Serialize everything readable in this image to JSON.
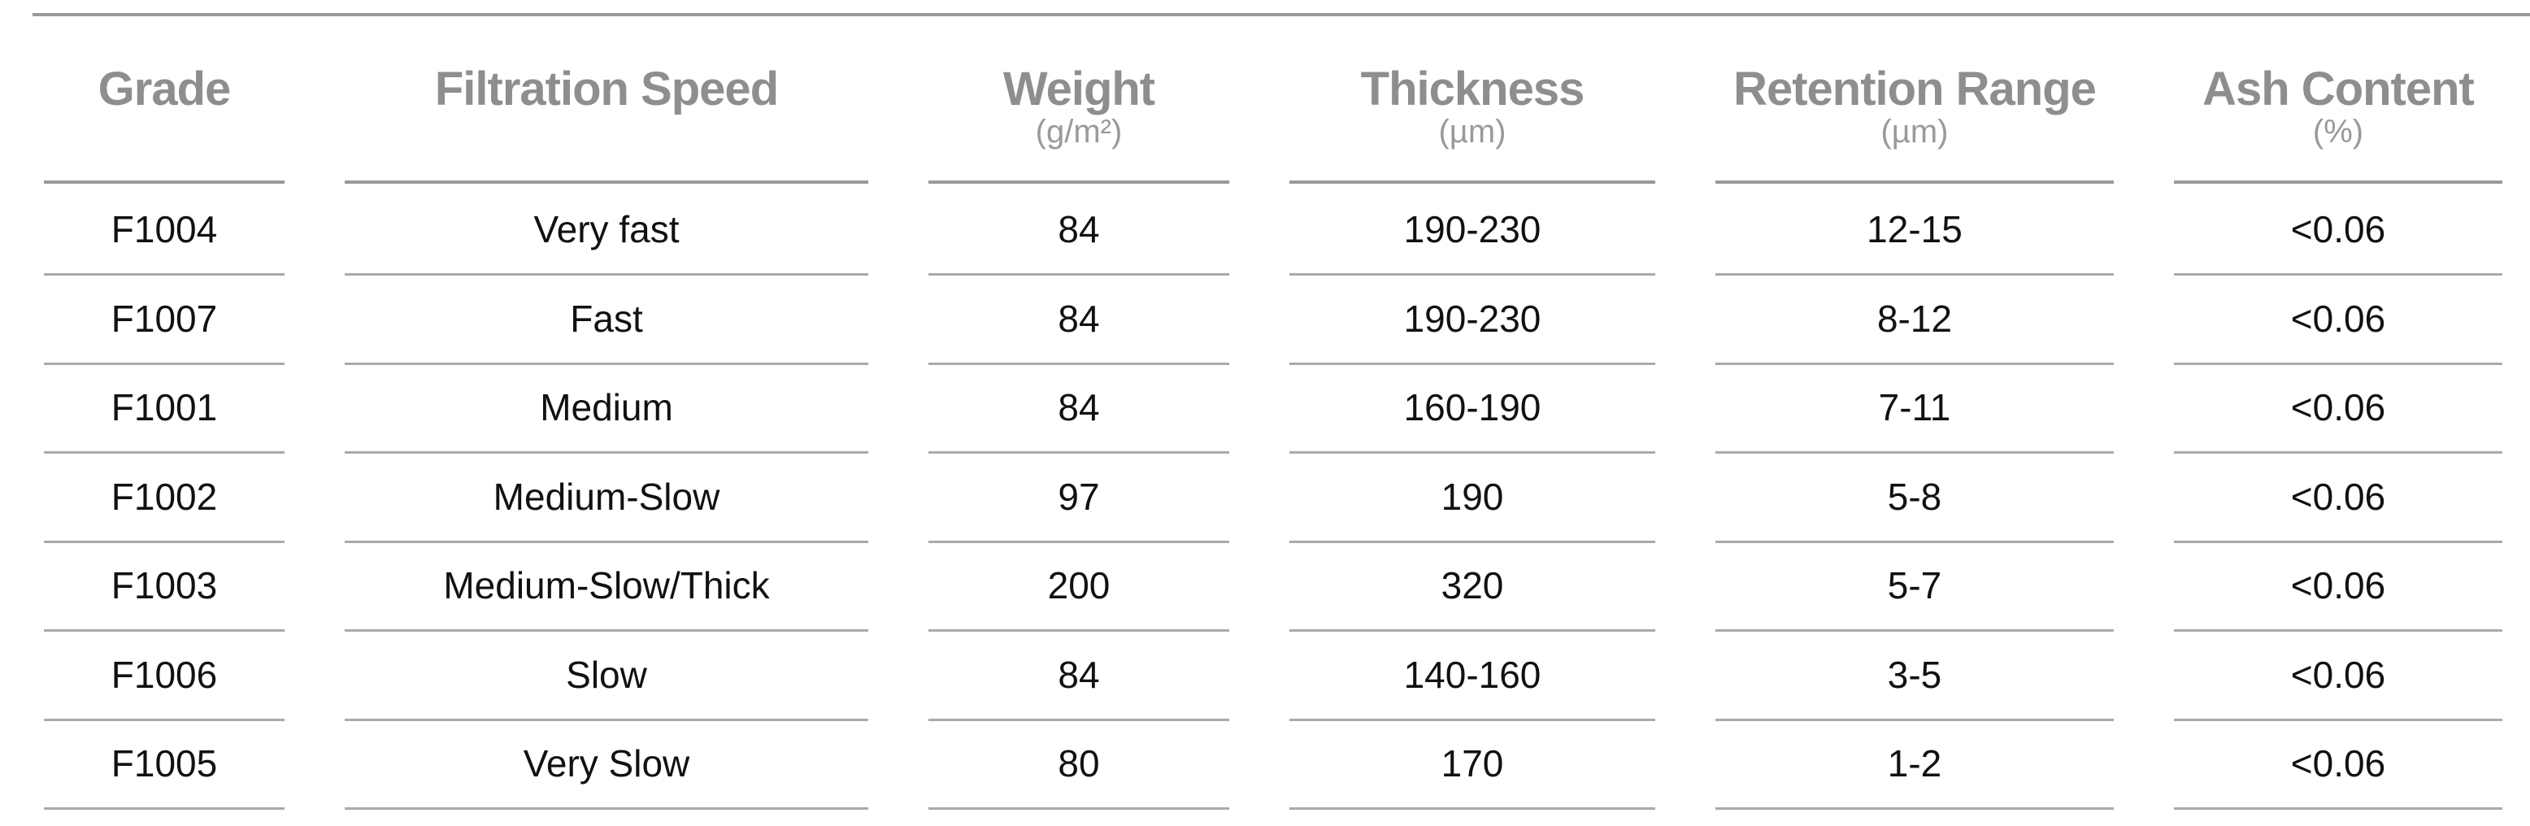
{
  "columns": [
    {
      "title": "Grade",
      "unit": ""
    },
    {
      "title": "Filtration Speed",
      "unit": ""
    },
    {
      "title": "Weight",
      "unit": "(g/m²)"
    },
    {
      "title": "Thickness",
      "unit": "(µm)"
    },
    {
      "title": "Retention Range",
      "unit": "(µm)"
    },
    {
      "title": "Ash Content",
      "unit": "(%)"
    }
  ],
  "rows": [
    [
      "F1004",
      "Very fast",
      "84",
      "190-230",
      "12-15",
      "<0.06"
    ],
    [
      "F1007",
      "Fast",
      "84",
      "190-230",
      "8-12",
      "<0.06"
    ],
    [
      "F1001",
      "Medium",
      "84",
      "160-190",
      "7-11",
      "<0.06"
    ],
    [
      "F1002",
      "Medium-Slow",
      "97",
      "190",
      "5-8",
      "<0.06"
    ],
    [
      "F1003",
      "Medium-Slow/Thick",
      "200",
      "320",
      "5-7",
      "<0.06"
    ],
    [
      "F1006",
      "Slow",
      "84",
      "140-160",
      "3-5",
      "<0.06"
    ],
    [
      "F1005",
      "Very Slow",
      "80",
      "170",
      "1-2",
      "<0.06"
    ]
  ]
}
